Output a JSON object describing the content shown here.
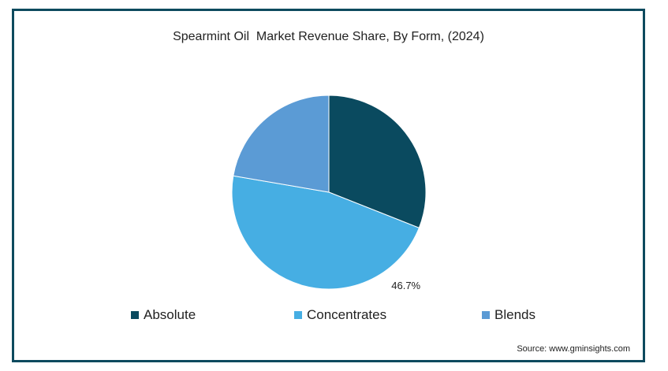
{
  "chart_data": {
    "type": "pie",
    "title": "Spearmint Oil  Market Revenue Share, By Form, (2024)",
    "slices": [
      {
        "name": "Absolute",
        "value": 31.0,
        "color": "#0a4a5f"
      },
      {
        "name": "Concentrates",
        "value": 46.7,
        "color": "#46aee3",
        "label": "46.7%"
      },
      {
        "name": "Blends",
        "value": 22.3,
        "color": "#5b9bd5"
      }
    ],
    "legend_position": "bottom"
  },
  "source": "Source: www.gminsights.com"
}
